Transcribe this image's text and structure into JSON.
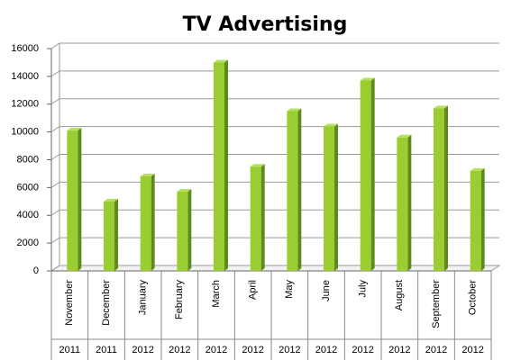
{
  "chart_data": {
    "type": "bar",
    "title": "TV Advertising",
    "categories": [
      "November",
      "December",
      "January",
      "February",
      "March",
      "April",
      "May",
      "June",
      "July",
      "August",
      "September",
      "October"
    ],
    "category_groups": [
      "2011",
      "2011",
      "2012",
      "2012",
      "2012",
      "2012",
      "2012",
      "2012",
      "2012",
      "2012",
      "2012",
      "2012"
    ],
    "values": [
      10100,
      5000,
      6800,
      5700,
      15000,
      7500,
      11500,
      10400,
      13700,
      9600,
      11700,
      7200
    ],
    "color": "#9acd32",
    "ylim": [
      0,
      16000
    ],
    "yticks": [
      0,
      2000,
      4000,
      6000,
      8000,
      10000,
      12000,
      14000,
      16000
    ],
    "grid": true
  }
}
